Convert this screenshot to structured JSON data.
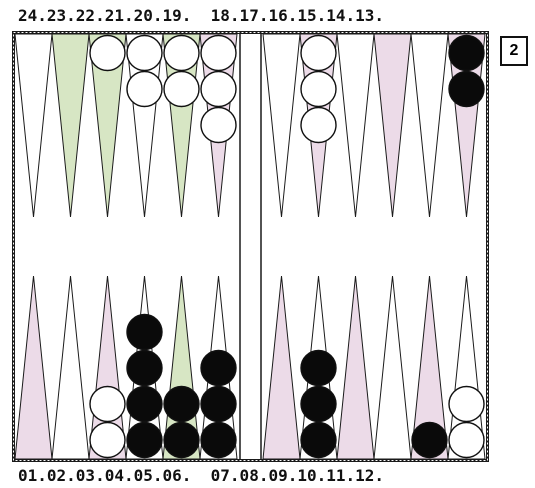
{
  "point_labels": {
    "top": "24.23.22.21.20.19.  18.17.16.15.14.13.",
    "bottom": "01.02.03.04.05.06.  07.08.09.10.11.12."
  },
  "doubling_cube": {
    "value": "2"
  },
  "colors": {
    "white_checker": "#ffffff",
    "black_checker": "#0a0a0a",
    "point_tint_green": "#d7e6c4",
    "point_tint_pink": "#ecdbe8",
    "board_line": "#1a1a1a"
  },
  "position": {
    "white_checkers": {
      "1": 0,
      "2": 0,
      "3": 2,
      "4": 0,
      "5": 0,
      "6": 0,
      "7": 0,
      "8": 0,
      "9": 0,
      "10": 0,
      "11": 0,
      "12": 2,
      "13": 0,
      "14": 0,
      "15": 0,
      "16": 0,
      "17": 3,
      "18": 0,
      "19": 3,
      "20": 2,
      "21": 2,
      "22": 1,
      "23": 0,
      "24": 0
    },
    "black_checkers": {
      "1": 0,
      "2": 0,
      "3": 0,
      "4": 4,
      "5": 2,
      "6": 3,
      "7": 0,
      "8": 3,
      "9": 0,
      "10": 0,
      "11": 1,
      "12": 0,
      "13": 2,
      "14": 0,
      "15": 0,
      "16": 0,
      "17": 0,
      "18": 0,
      "19": 0,
      "20": 0,
      "21": 0,
      "22": 0,
      "23": 0,
      "24": 0
    }
  }
}
